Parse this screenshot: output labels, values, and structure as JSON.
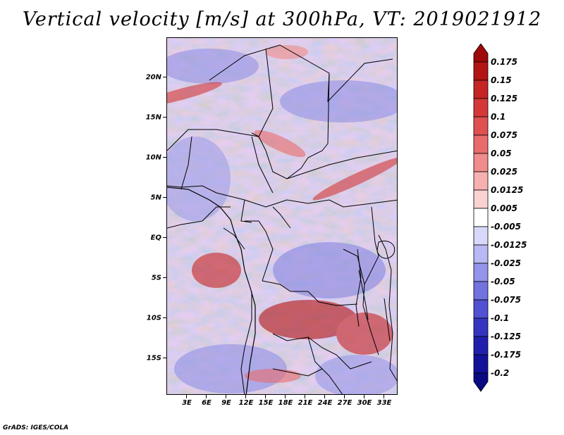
{
  "title": "Vertical velocity [m/s] at 300hPa, VT: 2019021912",
  "footer": "GrADS: IGES/COLA",
  "lat_labels": [
    "20N",
    "15N",
    "10N",
    "5N",
    "EQ",
    "5S",
    "10S",
    "15S"
  ],
  "lon_labels": [
    "3E",
    "6E",
    "9E",
    "12E",
    "15E",
    "18E",
    "21E",
    "24E",
    "27E",
    "30E",
    "33E"
  ],
  "colorbar": {
    "labels": [
      "0.175",
      "0.15",
      "0.125",
      "0.1",
      "0.075",
      "0.05",
      "0.025",
      "0.0125",
      "0.005",
      "-0.005",
      "-0.0125",
      "-0.025",
      "-0.05",
      "-0.075",
      "-0.1",
      "-0.125",
      "-0.175",
      "-0.2"
    ],
    "colors": [
      "#9e0a0a",
      "#b31414",
      "#c52525",
      "#d43838",
      "#df5050",
      "#e86c6c",
      "#f08c8c",
      "#f6b0b0",
      "#fbd2d2",
      "#ffffff",
      "#d8d8fb",
      "#b8b8f4",
      "#9494ea",
      "#7272e0",
      "#5151d3",
      "#3535c2",
      "#2020ad",
      "#121298",
      "#0a0a82"
    ]
  }
}
